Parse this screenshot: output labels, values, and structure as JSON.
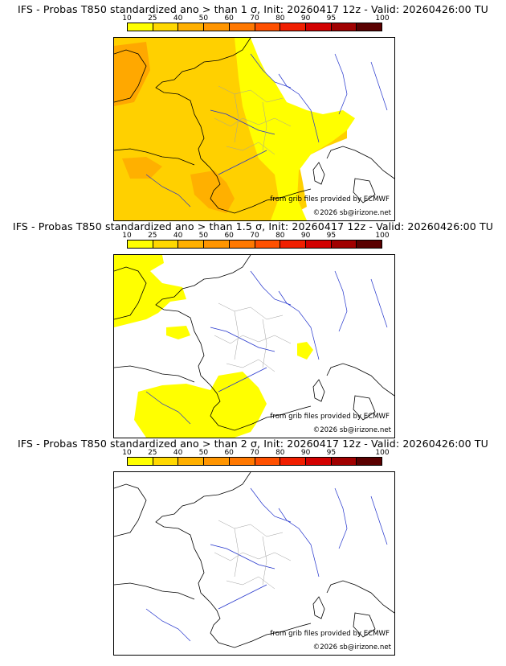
{
  "colorbar": {
    "labels": [
      "10",
      "25",
      "40",
      "50",
      "60",
      "70",
      "80",
      "90",
      "95",
      "100"
    ],
    "colors": [
      "#ffff00",
      "#ffd800",
      "#ffb000",
      "#ff9500",
      "#ff7800",
      "#ff5000",
      "#f01e00",
      "#d20000",
      "#a00000",
      "#5a0000"
    ]
  },
  "panels": [
    {
      "title": "IFS - Probas T850  standardized ano > than 1 σ, Init: 20260417 12z - Valid: 20260426:00 TU",
      "credit": "from grib files provided by ECMWF",
      "copyright": "©2026 sb@irizone.net"
    },
    {
      "title": "IFS - Probas T850  standardized ano > than 1.5 σ, Init: 20260417 12z - Valid: 20260426:00 TU",
      "credit": "from grib files provided by ECMWF",
      "copyright": "©2026 sb@irizone.net"
    },
    {
      "title": "IFS - Probas T850  standardized ano > than 2 σ, Init: 20260417 12z - Valid: 20260426:00 TU",
      "credit": "from grib files provided by ECMWF",
      "copyright": "©2026 sb@irizone.net"
    }
  ],
  "map_colors": {
    "land_outline": "#000000",
    "rivers": "#2233cc",
    "regions": "#a0a0a0"
  }
}
